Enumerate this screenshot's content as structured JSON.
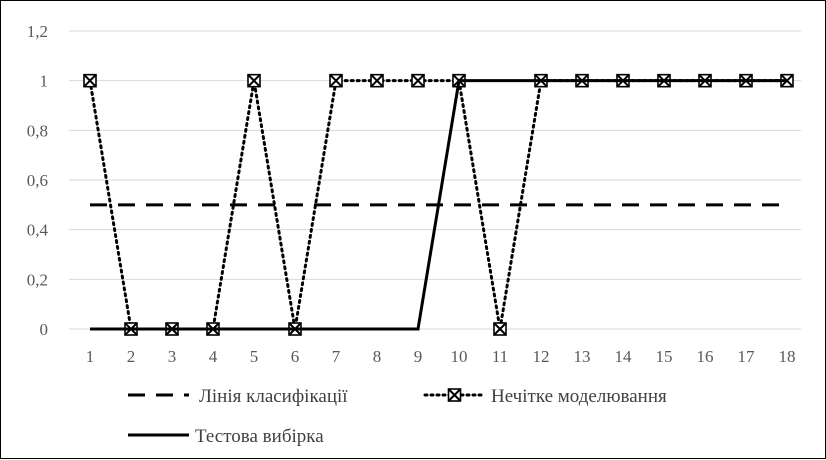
{
  "chart_data": {
    "type": "line",
    "categories": [
      "1",
      "2",
      "3",
      "4",
      "5",
      "6",
      "7",
      "8",
      "9",
      "10",
      "11",
      "12",
      "13",
      "14",
      "15",
      "16",
      "17",
      "18"
    ],
    "ylim": [
      0,
      1.2
    ],
    "yticks": [
      "0",
      "0,2",
      "0,4",
      "0,6",
      "0,8",
      "1",
      "1,2"
    ],
    "ytick_values": [
      0,
      0.2,
      0.4,
      0.6,
      0.8,
      1,
      1.2
    ],
    "grid": true,
    "legend_position": "bottom",
    "series": [
      {
        "name": "Лінія класифікації",
        "style": "dashed",
        "color": "#000000",
        "values": [
          0.5,
          0.5,
          0.5,
          0.5,
          0.5,
          0.5,
          0.5,
          0.5,
          0.5,
          0.5,
          0.5,
          0.5,
          0.5,
          0.5,
          0.5,
          0.5,
          0.5,
          0.5
        ]
      },
      {
        "name": "Нечітке моделювання",
        "style": "dotted",
        "marker": "boxed-x",
        "color": "#000000",
        "values": [
          1,
          0,
          0,
          0,
          1,
          0,
          1,
          1,
          1,
          1,
          0,
          1,
          1,
          1,
          1,
          1,
          1,
          1
        ]
      },
      {
        "name": "Тестова вибірка",
        "style": "solid",
        "color": "#000000",
        "values": [
          0,
          0,
          0,
          0,
          0,
          0,
          0,
          0,
          0,
          1,
          1,
          1,
          1,
          1,
          1,
          1,
          1,
          1
        ]
      }
    ]
  },
  "colors": {
    "gridline": "#d9d9d9",
    "text": "#595959",
    "line": "#000000"
  }
}
